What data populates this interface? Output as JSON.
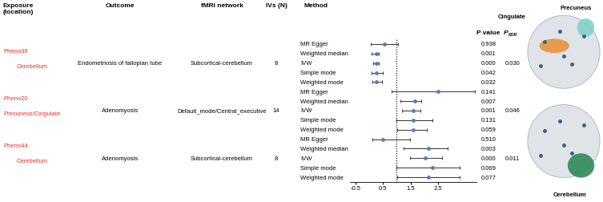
{
  "chart_data": {
    "type": "forest",
    "headers": {
      "exposure": "Exposure\n(location)",
      "outcome": "Outcome",
      "network": "fMRI network",
      "ivs": "IVs (N)",
      "method": "Method",
      "p_value": "P value",
      "p_fdr": {
        "main": "P",
        "sub": "FDR"
      }
    },
    "xlim": [
      -0.7,
      3.9
    ],
    "xticks": [
      -0.5,
      0.5,
      1.5,
      2.5
    ],
    "reference_line": 1,
    "tick_labels": "x",
    "color": "#4f81bd",
    "groups": [
      {
        "exposure": "Pheno38",
        "location": "Cerebellum",
        "outcome": "Endometriosis of fallopian tube",
        "network": "Subcortical-cerebellum",
        "ivs": 8,
        "p_fdr": {
          "value": 0.03,
          "label": "0.030"
        },
        "methods": [
          "MR Egger",
          "Weighted median",
          "IVW",
          "Simple mode",
          "Weighted mode"
        ],
        "values": [
          0.55,
          0.26,
          0.26,
          0.26,
          0.26
        ],
        "lower": [
          0.05,
          0.09,
          0.15,
          0.09,
          0.12
        ],
        "upper": [
          1.05,
          0.35,
          0.35,
          0.5,
          0.47
        ],
        "p_values": [
          {
            "value": 0.938,
            "label": "0.938"
          },
          {
            "value": 0.001,
            "label": "0.001"
          },
          {
            "value": 0,
            "label": "0.000"
          },
          {
            "value": 0.042,
            "label": "0.042"
          },
          {
            "value": 0.032,
            "label": "0.032"
          }
        ]
      },
      {
        "exposure": "Pheno20",
        "location": "Precuneus/Cingulate",
        "outcome": "Adenomyosis",
        "network": "Default_mode/Central_executive",
        "ivs": 14,
        "p_fdr": {
          "value": 0.046,
          "label": "0.046"
        },
        "methods": [
          "MR Egger",
          "Weighted median",
          "IVW",
          "Simple mode",
          "Weighted mode"
        ],
        "values": [
          2.5,
          1.65,
          1.6,
          1.6,
          1.6
        ],
        "lower": [
          0.8,
          1.12,
          1.18,
          0.98,
          1.03
        ],
        "upper": [
          3.85,
          1.9,
          1.85,
          2.3,
          2.1
        ],
        "p_values": [
          {
            "value": 0.141,
            "label": "0.141"
          },
          {
            "value": 0.007,
            "label": "0.007"
          },
          {
            "value": 0.001,
            "label": "0.001"
          },
          {
            "value": 0.131,
            "label": "0.131"
          },
          {
            "value": 0.059,
            "label": "0.059"
          }
        ]
      },
      {
        "exposure": "Pheno44",
        "location": "Cerebellum",
        "outcome": "Adenomyosis",
        "network": "Subcortical-cerebellum",
        "ivs": 8,
        "p_fdr": {
          "value": 0.011,
          "label": "0.011"
        },
        "methods": [
          "MR Egger",
          "Weighted median",
          "IVW",
          "Simple mode",
          "Weighted mode"
        ],
        "values": [
          0.5,
          2.15,
          2.05,
          2.3,
          2.15
        ],
        "lower": [
          0.12,
          1.25,
          1.47,
          0.98,
          1.03
        ],
        "upper": [
          1.47,
          2.85,
          2.65,
          3.3,
          3.3
        ],
        "p_values": [
          {
            "value": 0.51,
            "label": "0.510"
          },
          {
            "value": 0.003,
            "label": "0.003"
          },
          {
            "value": 0,
            "label": "0.000"
          },
          {
            "value": 0.069,
            "label": "0.069"
          },
          {
            "value": 0.077,
            "label": "0.077"
          }
        ]
      }
    ],
    "images": [
      {
        "regions": [
          {
            "name": "Cingulate",
            "color": "#e8923a"
          },
          {
            "name": "Precuneus",
            "color": "#7fd3c8"
          }
        ]
      },
      {
        "regions": [
          {
            "name": "Cerebellum",
            "color": "#2e8b57"
          }
        ]
      }
    ]
  }
}
